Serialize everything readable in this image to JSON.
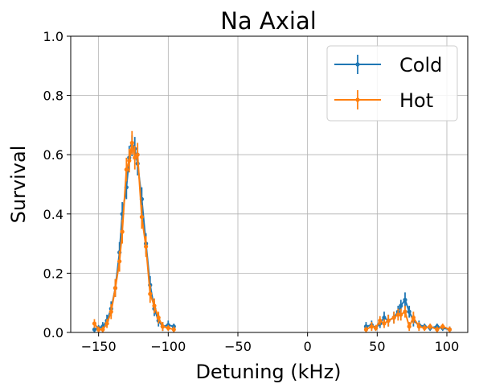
{
  "chart_data": {
    "type": "line",
    "title": "Na Axial",
    "xlabel": "Detuning (kHz)",
    "ylabel": "Survival",
    "xlim": [
      -170,
      115
    ],
    "ylim": [
      0.0,
      1.0
    ],
    "xticks": [
      -150,
      -100,
      -50,
      0,
      50,
      100
    ],
    "yticks": [
      0.0,
      0.2,
      0.4,
      0.6,
      0.8,
      1.0
    ],
    "xtick_labels": [
      "−150",
      "−100",
      "−50",
      "0",
      "50",
      "100"
    ],
    "ytick_labels": [
      "0.0",
      "0.2",
      "0.4",
      "0.6",
      "0.8",
      "1.0"
    ],
    "grid": true,
    "legend_position": "top-right",
    "series": [
      {
        "name": "Cold",
        "color": "#1f77b4",
        "segments": [
          [
            {
              "x": -153,
              "y": 0.01,
              "e": 0.01
            },
            {
              "x": -150,
              "y": 0.015,
              "e": 0.01
            },
            {
              "x": -147,
              "y": 0.02,
              "e": 0.015
            },
            {
              "x": -144,
              "y": 0.04,
              "e": 0.02
            },
            {
              "x": -141,
              "y": 0.08,
              "e": 0.025
            },
            {
              "x": -138,
              "y": 0.15,
              "e": 0.03
            },
            {
              "x": -135,
              "y": 0.27,
              "e": 0.035
            },
            {
              "x": -133,
              "y": 0.4,
              "e": 0.04
            },
            {
              "x": -130,
              "y": 0.49,
              "e": 0.04
            },
            {
              "x": -128,
              "y": 0.59,
              "e": 0.04
            },
            {
              "x": -126,
              "y": 0.63,
              "e": 0.035
            },
            {
              "x": -124,
              "y": 0.62,
              "e": 0.04
            },
            {
              "x": -122,
              "y": 0.57,
              "e": 0.04
            },
            {
              "x": -119,
              "y": 0.45,
              "e": 0.04
            },
            {
              "x": -116,
              "y": 0.3,
              "e": 0.035
            },
            {
              "x": -113,
              "y": 0.16,
              "e": 0.03
            },
            {
              "x": -110,
              "y": 0.08,
              "e": 0.025
            },
            {
              "x": -107,
              "y": 0.04,
              "e": 0.02
            },
            {
              "x": -104,
              "y": 0.02,
              "e": 0.015
            },
            {
              "x": -100,
              "y": 0.025,
              "e": 0.015
            },
            {
              "x": -96,
              "y": 0.02,
              "e": 0.01
            }
          ],
          [
            {
              "x": 42,
              "y": 0.02,
              "e": 0.015
            },
            {
              "x": 46,
              "y": 0.025,
              "e": 0.015
            },
            {
              "x": 49,
              "y": 0.015,
              "e": 0.01
            },
            {
              "x": 52,
              "y": 0.03,
              "e": 0.015
            },
            {
              "x": 55,
              "y": 0.05,
              "e": 0.02
            },
            {
              "x": 58,
              "y": 0.04,
              "e": 0.02
            },
            {
              "x": 62,
              "y": 0.05,
              "e": 0.02
            },
            {
              "x": 65,
              "y": 0.07,
              "e": 0.02
            },
            {
              "x": 67,
              "y": 0.09,
              "e": 0.02
            },
            {
              "x": 70,
              "y": 0.11,
              "e": 0.025
            },
            {
              "x": 73,
              "y": 0.07,
              "e": 0.02
            },
            {
              "x": 76,
              "y": 0.04,
              "e": 0.02
            },
            {
              "x": 80,
              "y": 0.025,
              "e": 0.015
            },
            {
              "x": 84,
              "y": 0.02,
              "e": 0.01
            },
            {
              "x": 88,
              "y": 0.015,
              "e": 0.01
            },
            {
              "x": 93,
              "y": 0.02,
              "e": 0.01
            },
            {
              "x": 97,
              "y": 0.015,
              "e": 0.01
            },
            {
              "x": 102,
              "y": 0.01,
              "e": 0.01
            }
          ]
        ]
      },
      {
        "name": "Hot",
        "color": "#ff7f0e",
        "segments": [
          [
            {
              "x": -153,
              "y": 0.03,
              "e": 0.015
            },
            {
              "x": -150,
              "y": 0.01,
              "e": 0.01
            },
            {
              "x": -147,
              "y": 0.01,
              "e": 0.01
            },
            {
              "x": -144,
              "y": 0.03,
              "e": 0.015
            },
            {
              "x": -141,
              "y": 0.07,
              "e": 0.025
            },
            {
              "x": -138,
              "y": 0.15,
              "e": 0.03
            },
            {
              "x": -135,
              "y": 0.24,
              "e": 0.035
            },
            {
              "x": -133,
              "y": 0.34,
              "e": 0.04
            },
            {
              "x": -130,
              "y": 0.55,
              "e": 0.04
            },
            {
              "x": -128,
              "y": 0.58,
              "e": 0.04
            },
            {
              "x": -126,
              "y": 0.64,
              "e": 0.04
            },
            {
              "x": -124,
              "y": 0.59,
              "e": 0.04
            },
            {
              "x": -122,
              "y": 0.6,
              "e": 0.04
            },
            {
              "x": -119,
              "y": 0.39,
              "e": 0.04
            },
            {
              "x": -116,
              "y": 0.29,
              "e": 0.035
            },
            {
              "x": -113,
              "y": 0.13,
              "e": 0.03
            },
            {
              "x": -110,
              "y": 0.09,
              "e": 0.025
            },
            {
              "x": -107,
              "y": 0.05,
              "e": 0.02
            },
            {
              "x": -104,
              "y": 0.02,
              "e": 0.015
            },
            {
              "x": -100,
              "y": 0.015,
              "e": 0.01
            },
            {
              "x": -96,
              "y": 0.01,
              "e": 0.01
            }
          ],
          [
            {
              "x": 42,
              "y": 0.01,
              "e": 0.01
            },
            {
              "x": 46,
              "y": 0.02,
              "e": 0.015
            },
            {
              "x": 49,
              "y": 0.015,
              "e": 0.01
            },
            {
              "x": 52,
              "y": 0.04,
              "e": 0.015
            },
            {
              "x": 55,
              "y": 0.03,
              "e": 0.015
            },
            {
              "x": 58,
              "y": 0.04,
              "e": 0.02
            },
            {
              "x": 62,
              "y": 0.05,
              "e": 0.02
            },
            {
              "x": 65,
              "y": 0.06,
              "e": 0.02
            },
            {
              "x": 67,
              "y": 0.06,
              "e": 0.02
            },
            {
              "x": 70,
              "y": 0.07,
              "e": 0.02
            },
            {
              "x": 73,
              "y": 0.02,
              "e": 0.015
            },
            {
              "x": 76,
              "y": 0.05,
              "e": 0.02
            },
            {
              "x": 80,
              "y": 0.02,
              "e": 0.015
            },
            {
              "x": 84,
              "y": 0.015,
              "e": 0.01
            },
            {
              "x": 88,
              "y": 0.02,
              "e": 0.01
            },
            {
              "x": 93,
              "y": 0.01,
              "e": 0.01
            },
            {
              "x": 97,
              "y": 0.02,
              "e": 0.01
            },
            {
              "x": 102,
              "y": 0.01,
              "e": 0.01
            }
          ]
        ]
      }
    ]
  }
}
